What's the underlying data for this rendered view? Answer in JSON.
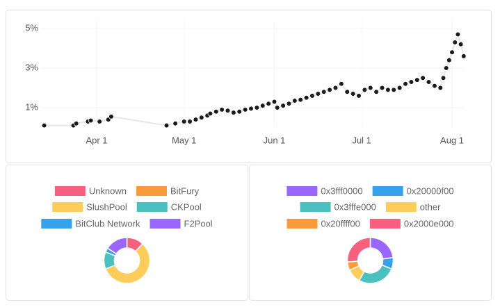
{
  "chart_data": [
    {
      "type": "scatter",
      "x": [
        "Mar 14",
        "Mar 24",
        "Mar 25",
        "Mar 29",
        "Mar 30",
        "Apr 2",
        "Apr 5",
        "Apr 6",
        "Apr 25",
        "Apr 28",
        "May 1",
        "May 3",
        "May 5",
        "May 7",
        "May 9",
        "May 10",
        "May 12",
        "May 14",
        "May 16",
        "May 18",
        "May 20",
        "May 22",
        "May 24",
        "May 26",
        "May 28",
        "May 30",
        "Jun 1",
        "Jun 2",
        "Jun 4",
        "Jun 6",
        "Jun 8",
        "Jun 10",
        "Jun 12",
        "Jun 14",
        "Jun 16",
        "Jun 18",
        "Jun 20",
        "Jun 22",
        "Jun 24",
        "Jun 26",
        "Jun 28",
        "Jun 30",
        "Jul 2",
        "Jul 4",
        "Jul 6",
        "Jul 8",
        "Jul 10",
        "Jul 12",
        "Jul 14",
        "Jul 16",
        "Jul 18",
        "Jul 20",
        "Jul 22",
        "Jul 24",
        "Jul 26",
        "Jul 28",
        "Jul 29",
        "Jul 30",
        "Jul 31",
        "Aug 1",
        "Aug 2",
        "Aug 3",
        "Aug 4",
        "Aug 5"
      ],
      "values": [
        0.1,
        0.1,
        0.2,
        0.3,
        0.35,
        0.3,
        0.4,
        0.55,
        0.1,
        0.2,
        0.3,
        0.3,
        0.4,
        0.5,
        0.6,
        0.7,
        0.8,
        0.9,
        0.85,
        0.75,
        0.8,
        0.9,
        0.95,
        1.0,
        1.1,
        1.2,
        1.3,
        1.0,
        1.1,
        1.2,
        1.35,
        1.4,
        1.5,
        1.6,
        1.7,
        1.8,
        1.9,
        2.0,
        2.2,
        1.8,
        1.7,
        1.6,
        1.9,
        2.0,
        1.8,
        2.0,
        1.9,
        1.9,
        2.0,
        2.2,
        2.3,
        2.4,
        2.5,
        2.3,
        2.1,
        2.0,
        2.5,
        3.0,
        3.4,
        3.8,
        4.3,
        4.7,
        4.2,
        3.6
      ],
      "color": "#1a1a1a",
      "line_color": "#e6e6e6",
      "xlim": [
        "Mar 13",
        "Aug 5"
      ],
      "xticks": [
        "Apr 1",
        "May 1",
        "Jun 1",
        "Jul 1",
        "Aug 1"
      ],
      "ylim": [
        0,
        5.4
      ],
      "yticks": [
        {
          "value": 1,
          "label": "1%"
        },
        {
          "value": 3,
          "label": "3%"
        },
        {
          "value": 5,
          "label": "5%"
        }
      ],
      "grid": true
    },
    {
      "type": "doughnut",
      "categories": [
        "Unknown",
        "BitFury",
        "SlushPool",
        "CKPool",
        "BitClub Network",
        "F2Pool"
      ],
      "values": [
        12,
        0,
        57,
        12,
        3,
        16
      ],
      "colors": [
        "#f7617f",
        "#f99b3a",
        "#fdcd5c",
        "#4bc0c0",
        "#36a2eb",
        "#9966ff"
      ]
    },
    {
      "type": "doughnut",
      "categories": [
        "0x3fff0000",
        "0x20000f00",
        "0x3fffe000",
        "other",
        "0x20ffff00",
        "0x2000e000"
      ],
      "values": [
        23,
        8,
        27,
        10,
        6,
        26
      ],
      "colors": [
        "#9966ff",
        "#36a2eb",
        "#4bc0c0",
        "#fdcd5c",
        "#f99b3a",
        "#f7617f"
      ]
    }
  ]
}
